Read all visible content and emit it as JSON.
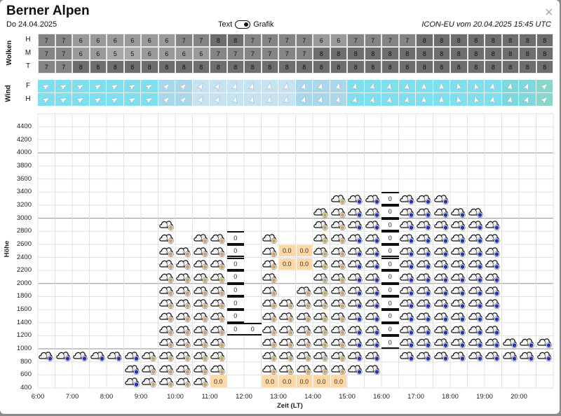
{
  "header": {
    "title": "Berner Alpen",
    "date": "Do 24.04.2025",
    "toggle_left": "Text",
    "toggle_right": "Grafik",
    "toggle_state": "Grafik",
    "model_info": "ICON-EU vom 20.04.2025 15:45 UTC",
    "close_label": "×"
  },
  "clouds": {
    "group_label": "Wolken",
    "rows": [
      {
        "label": "H",
        "values": [
          7,
          7,
          6,
          6,
          6,
          6,
          6,
          6,
          7,
          7,
          8,
          8,
          7,
          7,
          7,
          7,
          6,
          6,
          7,
          7,
          7,
          7,
          8,
          8,
          8,
          8,
          8,
          8,
          8,
          8
        ]
      },
      {
        "label": "M",
        "values": [
          7,
          7,
          6,
          6,
          5,
          5,
          6,
          6,
          6,
          6,
          7,
          7,
          7,
          7,
          7,
          7,
          8,
          8,
          8,
          8,
          8,
          8,
          8,
          8,
          8,
          8,
          8,
          8,
          8,
          8
        ]
      },
      {
        "label": "T",
        "values": [
          7,
          7,
          8,
          8,
          8,
          8,
          8,
          8,
          8,
          8,
          8,
          8,
          8,
          8,
          8,
          8,
          8,
          8,
          8,
          8,
          8,
          8,
          8,
          8,
          8,
          8,
          8,
          8,
          8,
          8
        ]
      }
    ],
    "shade_colors": {
      "5": "#a8a8a8",
      "6": "#9a9a9a",
      "7": "#858585",
      "8": "#6e6e6e"
    }
  },
  "wind": {
    "group_label": "Wind",
    "rows": [
      {
        "label": "F",
        "directions_deg": [
          60,
          60,
          60,
          60,
          60,
          60,
          60,
          45,
          45,
          30,
          30,
          15,
          15,
          10,
          10,
          15,
          15,
          15,
          15,
          15,
          10,
          10,
          0,
          0,
          -15,
          -15,
          10,
          10,
          25,
          45
        ]
      },
      {
        "label": "H",
        "directions_deg": [
          60,
          60,
          60,
          60,
          60,
          60,
          60,
          45,
          45,
          30,
          30,
          15,
          15,
          10,
          10,
          15,
          15,
          15,
          15,
          15,
          10,
          10,
          0,
          0,
          -15,
          -15,
          10,
          10,
          25,
          45
        ]
      }
    ],
    "bg_colors": [
      "#7ee0ef",
      "#7ee0ef",
      "#7ee0ef",
      "#7ee0ef",
      "#7ee0ef",
      "#7ee0ef",
      "#7ee0ef",
      "#a9d8ec",
      "#a9d8ec",
      "#c5e3f0",
      "#c5e3f0",
      "#c5e3f0",
      "#c5e3f0",
      "#c5e3f0",
      "#c5e3f0",
      "#a9d8ec",
      "#a9d8ec",
      "#a9d8ec",
      "#7ee0ef",
      "#7ee0ef",
      "#7ee0ef",
      "#7ee0ef",
      "#7ee0ef",
      "#7ee0ef",
      "#7ee0ef",
      "#7ee0ef",
      "#7ee0ef",
      "#7cd8dc",
      "#7cd8dc",
      "#86d8cc"
    ]
  },
  "chart_data": {
    "type": "heatmap",
    "title": "",
    "xlabel": "Zeit (LT)",
    "ylabel": "Höhe",
    "x_ticks": [
      "6:00",
      "7:00",
      "8:00",
      "9:00",
      "10:00",
      "11:00",
      "12:00",
      "13:00",
      "14:00",
      "15:00",
      "16:00",
      "17:00",
      "18:00",
      "19:00",
      "20:00"
    ],
    "y_ticks": [
      400,
      600,
      800,
      1000,
      1200,
      1400,
      1600,
      1800,
      2000,
      2200,
      2400,
      2600,
      2800,
      3000,
      3200,
      3400,
      3600,
      3800,
      4000,
      4200,
      4400
    ],
    "ylim": [
      400,
      4600
    ],
    "major_lines": [
      1000,
      2000,
      3000,
      4000
    ],
    "time_start": "6:00",
    "interval_minutes": 30,
    "band_height_m": 200,
    "legend": {
      "cloud-drop": "cloud with rain badge",
      "cloud-sun": "cloud with drizzle/light badge",
      "zero": "freezing level marker 0",
      "precip": "precipitation amount"
    },
    "columns": [
      {
        "time": "6:00",
        "cells": [
          {
            "band": 800,
            "kind": "cloud-drop"
          }
        ]
      },
      {
        "time": "6:30",
        "cells": [
          {
            "band": 800,
            "kind": "cloud-drop"
          }
        ]
      },
      {
        "time": "7:00",
        "cells": [
          {
            "band": 800,
            "kind": "cloud-drop"
          }
        ]
      },
      {
        "time": "7:30",
        "cells": [
          {
            "band": 800,
            "kind": "cloud-drop"
          }
        ]
      },
      {
        "time": "8:00",
        "cells": [
          {
            "band": 800,
            "kind": "cloud-drop"
          }
        ]
      },
      {
        "time": "8:30",
        "cells": [
          {
            "band": 400,
            "kind": "cloud-drop"
          },
          {
            "band": 600,
            "kind": "cloud-drop"
          },
          {
            "band": 800,
            "kind": "cloud-drop"
          }
        ]
      },
      {
        "time": "9:00",
        "cells": [
          {
            "band": 400,
            "kind": "cloud-sun"
          },
          {
            "band": 600,
            "kind": "cloud-sun"
          },
          {
            "band": 800,
            "kind": "cloud-sun"
          }
        ]
      },
      {
        "time": "9:30",
        "range": {
          "from": 400,
          "to": 2800,
          "kind": "cloud-sun"
        }
      },
      {
        "time": "10:00",
        "range": {
          "from": 400,
          "to": 2400,
          "kind": "cloud-sun"
        }
      },
      {
        "time": "10:30",
        "range": {
          "from": 400,
          "to": 2600,
          "kind": "cloud-sun"
        }
      },
      {
        "time": "11:00",
        "range": {
          "from": 600,
          "to": 2600,
          "kind": "cloud-sun"
        },
        "cells": [
          {
            "band": 400,
            "kind": "precip",
            "text": "0.0"
          }
        ]
      },
      {
        "time": "11:30",
        "range": {
          "from": 1200,
          "to": 2600,
          "kind": "zero",
          "text": "0"
        }
      },
      {
        "time": "12:00",
        "cells": [
          {
            "band": 1200,
            "kind": "zero",
            "text": "0"
          }
        ]
      },
      {
        "time": "12:30",
        "range": {
          "from": 600,
          "to": 2600,
          "kind": "cloud-sun"
        },
        "cells": [
          {
            "band": 400,
            "kind": "precip",
            "text": "0.0"
          }
        ]
      },
      {
        "time": "13:00",
        "range": {
          "from": 600,
          "to": 1600,
          "kind": "cloud-sun"
        },
        "cells": [
          {
            "band": 400,
            "kind": "precip",
            "text": "0.0"
          },
          {
            "band": 2200,
            "kind": "precip",
            "text": "0.0"
          },
          {
            "band": 2400,
            "kind": "precip",
            "text": "0.0"
          }
        ]
      },
      {
        "time": "13:30",
        "range": {
          "from": 600,
          "to": 1800,
          "kind": "cloud-sun"
        },
        "cells": [
          {
            "band": 400,
            "kind": "precip",
            "text": "0.0"
          },
          {
            "band": 2200,
            "kind": "precip",
            "text": "0.0"
          },
          {
            "band": 2400,
            "kind": "precip",
            "text": "0.0"
          }
        ]
      },
      {
        "time": "14:00",
        "range": {
          "from": 600,
          "to": 3000,
          "kind": "cloud-sun"
        },
        "cells": [
          {
            "band": 400,
            "kind": "precip",
            "text": "0.0"
          }
        ]
      },
      {
        "time": "14:30",
        "range": {
          "from": 600,
          "to": 3200,
          "kind": "cloud-sun"
        },
        "cells": [
          {
            "band": 400,
            "kind": "precip",
            "text": "0.0"
          }
        ]
      },
      {
        "time": "15:00",
        "range": {
          "from": 600,
          "to": 3200,
          "kind": "cloud-drop"
        }
      },
      {
        "time": "15:30",
        "range": {
          "from": 600,
          "to": 3200,
          "kind": "cloud-drop"
        }
      },
      {
        "time": "16:00",
        "range": {
          "from": 1000,
          "to": 3200,
          "kind": "zero",
          "text": "0"
        }
      },
      {
        "time": "16:30",
        "range": {
          "from": 800,
          "to": 3200,
          "kind": "cloud-drop"
        }
      },
      {
        "time": "17:00",
        "range": {
          "from": 800,
          "to": 3200,
          "kind": "cloud-drop"
        }
      },
      {
        "time": "17:30",
        "range": {
          "from": 800,
          "to": 3200,
          "kind": "cloud-drop"
        }
      },
      {
        "time": "18:00",
        "range": {
          "from": 800,
          "to": 3000,
          "kind": "cloud-drop"
        }
      },
      {
        "time": "18:30",
        "range": {
          "from": 800,
          "to": 3000,
          "kind": "cloud-drop"
        }
      },
      {
        "time": "19:00",
        "range": {
          "from": 800,
          "to": 2800,
          "kind": "cloud-drop"
        }
      },
      {
        "time": "19:30",
        "range": {
          "from": 800,
          "to": 1000,
          "kind": "cloud-drop"
        }
      },
      {
        "time": "20:00",
        "range": {
          "from": 800,
          "to": 1000,
          "kind": "cloud-drop"
        }
      },
      {
        "time": "20:30",
        "range": {
          "from": 800,
          "to": 1000,
          "kind": "cloud-drop"
        }
      }
    ]
  },
  "colors": {
    "drop_badge": "#2233bb",
    "sun_badge": "#c8a46a",
    "precip_bg": "#fdd8a4"
  }
}
